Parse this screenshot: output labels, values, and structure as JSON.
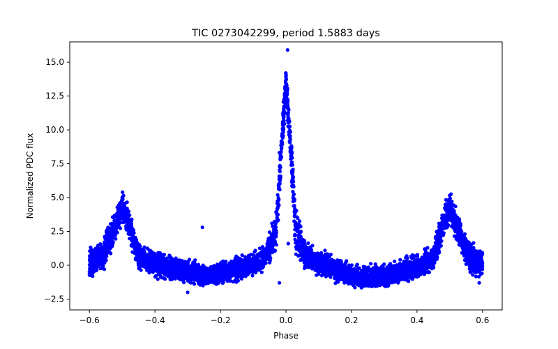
{
  "chart_data": {
    "type": "scatter",
    "title": "TIC 0273042299, period 1.5883 days",
    "xlabel": "Phase",
    "ylabel": "Normalized PDC flux",
    "xlim": [
      -0.66,
      0.66
    ],
    "ylim": [
      -3.3,
      16.5
    ],
    "xticks": [
      -0.6,
      -0.4,
      -0.2,
      0.0,
      0.2,
      0.4,
      0.6
    ],
    "xtick_labels": [
      "−0.6",
      "−0.4",
      "−0.2",
      "0.0",
      "0.2",
      "0.4",
      "0.6"
    ],
    "yticks": [
      -2.5,
      0.0,
      2.5,
      5.0,
      7.5,
      10.0,
      12.5,
      15.0
    ],
    "ytick_labels": [
      "−2.5",
      "0.0",
      "2.5",
      "5.0",
      "7.5",
      "10.0",
      "12.5",
      "15.0"
    ],
    "grid": false,
    "marker_color": "#0000ff",
    "envelope": {
      "phase": [
        -0.6,
        -0.56,
        -0.53,
        -0.51,
        -0.5,
        -0.49,
        -0.47,
        -0.45,
        -0.4,
        -0.3,
        -0.25,
        -0.2,
        -0.1,
        -0.06,
        -0.03,
        -0.015,
        0.0,
        0.015,
        0.03,
        0.06,
        0.1,
        0.2,
        0.25,
        0.3,
        0.4,
        0.45,
        0.47,
        0.49,
        0.5,
        0.51,
        0.53,
        0.56,
        0.6
      ],
      "low": [
        -1.3,
        -0.9,
        0.8,
        2.2,
        2.8,
        2.2,
        0.8,
        -0.6,
        -1.1,
        -1.6,
        -1.8,
        -1.7,
        -1.0,
        -0.5,
        0.5,
        6.0,
        12.0,
        6.0,
        0.5,
        -0.6,
        -1.0,
        -1.8,
        -2.0,
        -1.9,
        -1.3,
        -0.7,
        0.8,
        2.2,
        2.8,
        2.2,
        0.8,
        -0.9,
        -1.3
      ],
      "high": [
        1.5,
        2.2,
        3.9,
        5.3,
        5.8,
        5.3,
        3.8,
        1.8,
        1.3,
        0.6,
        0.3,
        0.4,
        1.2,
        1.9,
        4.5,
        10.5,
        15.3,
        10.5,
        4.5,
        1.9,
        1.3,
        0.3,
        0.1,
        0.3,
        1.1,
        1.7,
        3.8,
        5.3,
        5.8,
        5.3,
        3.9,
        2.2,
        1.5
      ]
    },
    "outliers": [
      {
        "x": -0.255,
        "y": 2.8
      },
      {
        "x": 0.005,
        "y": 15.9
      },
      {
        "x": 0.007,
        "y": 1.6
      },
      {
        "x": -0.02,
        "y": -1.3
      },
      {
        "x": -0.3,
        "y": -2.0
      },
      {
        "x": 0.56,
        "y": 0.7
      },
      {
        "x": 0.59,
        "y": -1.3
      }
    ]
  }
}
